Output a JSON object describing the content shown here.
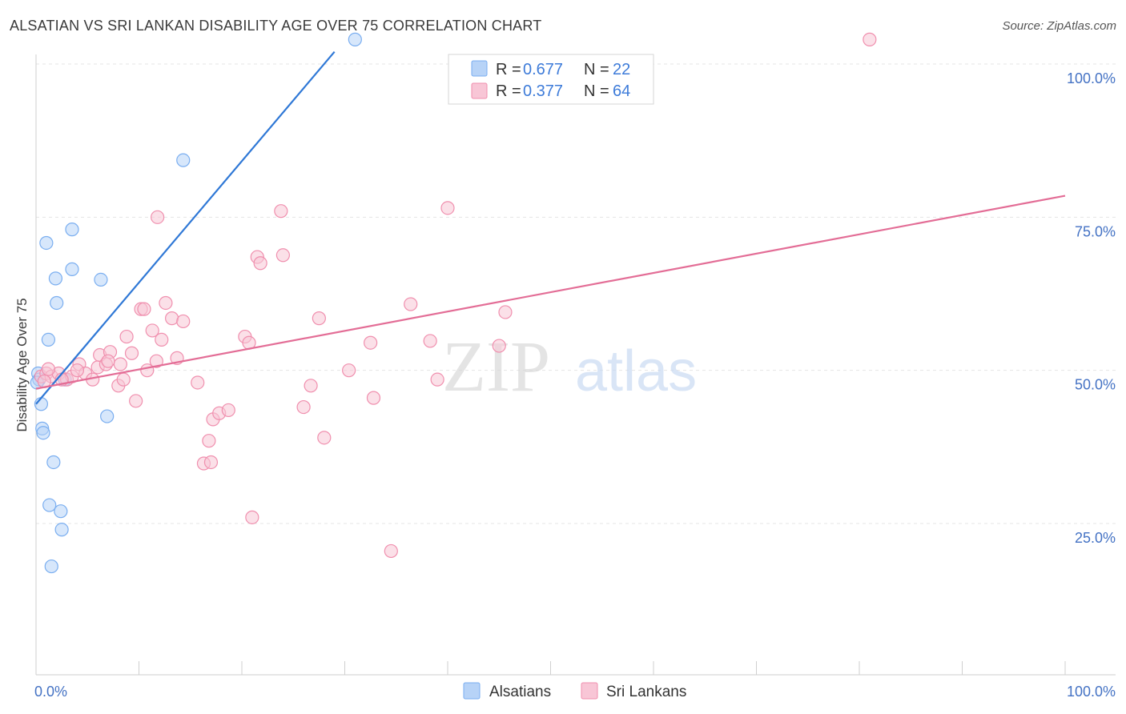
{
  "header": {
    "title": "ALSATIAN VS SRI LANKAN DISABILITY AGE OVER 75 CORRELATION CHART",
    "source": "Source: ZipAtlas.com"
  },
  "watermark": {
    "zip": "ZIP",
    "atlas": "atlas"
  },
  "legend": {
    "rows": [
      {
        "r_label": "R =",
        "r_value": "0.677",
        "n_label": "N =",
        "n_value": "22"
      },
      {
        "r_label": "R =",
        "r_value": "0.377",
        "n_label": "N =",
        "n_value": "64"
      }
    ]
  },
  "chart_data": {
    "type": "scatter",
    "title": "ALSATIAN VS SRI LANKAN DISABILITY AGE OVER 75 CORRELATION CHART",
    "xlabel": "",
    "ylabel": "Disability Age Over 75",
    "xlim": [
      0,
      100
    ],
    "ylim": [
      0,
      105
    ],
    "x_tick_labels": [
      "0.0%",
      "100.0%"
    ],
    "y_ticks": [
      25,
      50,
      75,
      100
    ],
    "y_tick_labels": [
      "25.0%",
      "50.0%",
      "75.0%",
      "100.0%"
    ],
    "grid": true,
    "series": [
      {
        "name": "Alsatians",
        "color": "#7aaef0",
        "fill": "#b7d3f7",
        "line_color": "#2f78d6",
        "trend": {
          "x0": 0.0,
          "y0": 44.5,
          "x1": 29.0,
          "y1": 102.0
        },
        "points": [
          [
            0.2,
            49.5
          ],
          [
            0.3,
            48.5
          ],
          [
            0.5,
            44.5
          ],
          [
            0.6,
            40.5
          ],
          [
            0.7,
            39.8
          ],
          [
            1.0,
            70.8
          ],
          [
            1.2,
            55.0
          ],
          [
            1.3,
            28.0
          ],
          [
            1.5,
            18.0
          ],
          [
            1.7,
            35.0
          ],
          [
            1.9,
            65.0
          ],
          [
            2.0,
            61.0
          ],
          [
            2.4,
            27.0
          ],
          [
            2.5,
            24.0
          ],
          [
            2.8,
            48.5
          ],
          [
            3.5,
            73.0
          ],
          [
            3.5,
            66.5
          ],
          [
            6.3,
            64.8
          ],
          [
            6.9,
            42.5
          ],
          [
            14.3,
            84.3
          ],
          [
            31.0,
            104.0
          ],
          [
            0.1,
            48.0
          ]
        ]
      },
      {
        "name": "Sri Lankans",
        "color": "#f08fae",
        "fill": "#f8c6d6",
        "line_color": "#e36d96",
        "trend": {
          "x0": 0.0,
          "y0": 47.0,
          "x1": 100.0,
          "y1": 78.5
        },
        "points": [
          [
            0.5,
            49.0
          ],
          [
            1.0,
            49.5
          ],
          [
            1.5,
            49.0
          ],
          [
            2.2,
            49.5
          ],
          [
            3.0,
            48.5
          ],
          [
            3.5,
            49.0
          ],
          [
            4.2,
            51.0
          ],
          [
            4.8,
            49.5
          ],
          [
            5.5,
            48.5
          ],
          [
            6.0,
            50.5
          ],
          [
            6.2,
            52.5
          ],
          [
            6.8,
            51.0
          ],
          [
            7.2,
            53.0
          ],
          [
            8.0,
            47.5
          ],
          [
            8.2,
            51.0
          ],
          [
            8.5,
            48.5
          ],
          [
            8.8,
            55.5
          ],
          [
            9.3,
            52.8
          ],
          [
            9.7,
            45.0
          ],
          [
            10.2,
            60.0
          ],
          [
            10.5,
            60.0
          ],
          [
            10.8,
            50.0
          ],
          [
            11.3,
            56.5
          ],
          [
            11.7,
            51.5
          ],
          [
            12.2,
            55.0
          ],
          [
            12.6,
            61.0
          ],
          [
            13.2,
            58.5
          ],
          [
            13.7,
            52.0
          ],
          [
            14.3,
            58.0
          ],
          [
            15.7,
            48.0
          ],
          [
            16.3,
            34.8
          ],
          [
            16.8,
            38.5
          ],
          [
            17.2,
            42.0
          ],
          [
            17.8,
            43.0
          ],
          [
            18.7,
            43.5
          ],
          [
            17.0,
            35.0
          ],
          [
            20.3,
            55.5
          ],
          [
            20.7,
            54.5
          ],
          [
            21.0,
            26.0
          ],
          [
            21.5,
            68.5
          ],
          [
            21.8,
            67.5
          ],
          [
            23.8,
            76.0
          ],
          [
            24.0,
            68.8
          ],
          [
            26.0,
            44.0
          ],
          [
            26.7,
            47.5
          ],
          [
            27.5,
            58.5
          ],
          [
            28.0,
            39.0
          ],
          [
            30.4,
            50.0
          ],
          [
            32.5,
            54.5
          ],
          [
            32.8,
            45.5
          ],
          [
            34.5,
            20.5
          ],
          [
            36.4,
            60.8
          ],
          [
            38.3,
            54.8
          ],
          [
            39.0,
            48.5
          ],
          [
            40.0,
            76.5
          ],
          [
            45.0,
            54.0
          ],
          [
            45.6,
            59.5
          ],
          [
            11.8,
            75.0
          ],
          [
            81.0,
            104.0
          ],
          [
            2.5,
            48.5
          ],
          [
            4.0,
            50.0
          ],
          [
            1.2,
            50.2
          ],
          [
            7.0,
            51.5
          ],
          [
            0.8,
            48.2
          ]
        ]
      }
    ]
  }
}
